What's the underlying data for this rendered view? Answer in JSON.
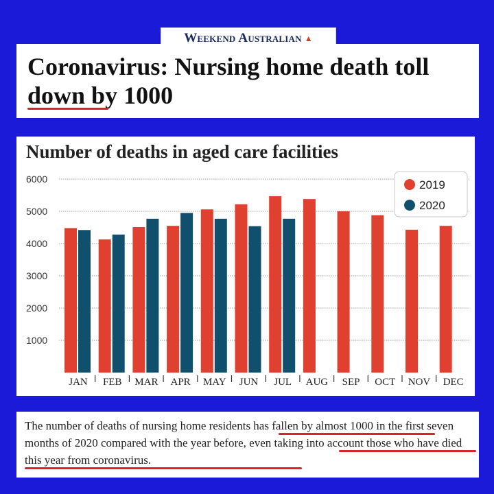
{
  "masthead": {
    "publication": "Weekend Australian",
    "logo_mark": "kangaroo-icon"
  },
  "headline": {
    "text": "Coronavirus: Nursing home death toll down by 1000"
  },
  "caption": {
    "text": "The number of deaths of nursing home residents has fallen by almost 1000 in the first seven months of 2020 compared with the year before, even taking into account those who have died this year from coronavirus."
  },
  "colors": {
    "background": "#1a1ad8",
    "series_2019": "#e04030",
    "series_2020": "#11506c",
    "highlight": "#d8232a"
  },
  "chart_data": {
    "type": "bar",
    "title": "Number of deaths in aged care facilities",
    "xlabel": "",
    "ylabel": "",
    "categories": [
      "JAN",
      "FEB",
      "MAR",
      "APR",
      "MAY",
      "JUN",
      "JUL",
      "AUG",
      "SEP",
      "OCT",
      "NOV",
      "DEC"
    ],
    "series": [
      {
        "name": "2019",
        "color": "#e04030",
        "values": [
          4480,
          4130,
          4510,
          4550,
          5060,
          5220,
          5470,
          5380,
          5000,
          4880,
          4430,
          4550
        ]
      },
      {
        "name": "2020",
        "color": "#11506c",
        "values": [
          4420,
          4280,
          4770,
          4950,
          4770,
          4540,
          4770,
          null,
          null,
          null,
          null,
          null
        ]
      }
    ],
    "yticks": [
      1000,
      2000,
      3000,
      4000,
      5000,
      6000
    ],
    "ylim": [
      0,
      6000
    ],
    "grid": true,
    "legend_position": "top-right"
  }
}
